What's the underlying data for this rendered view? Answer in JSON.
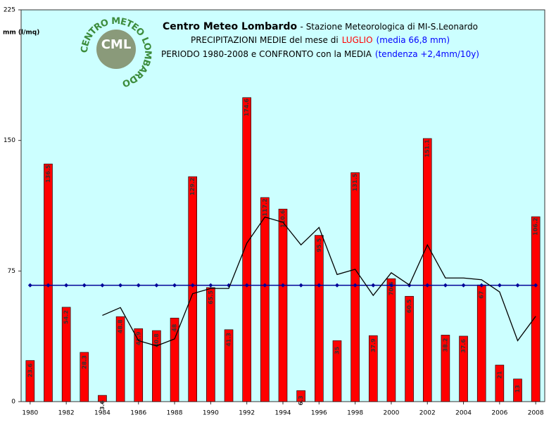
{
  "chart_data": {
    "type": "bar",
    "title": "Centro Meteo Lombardo",
    "subtitle": "- Stazione Meteorologica di MI-S.Leonardo",
    "heading_lines": [
      [
        {
          "text": "PRECIPITAZIONI MEDIE del mese di",
          "color": "#000000"
        },
        {
          "text": "LUGLIO",
          "color": "#ff0000"
        },
        {
          "text": "(media 66,8 mm)",
          "color": "#0000ff"
        }
      ],
      [
        {
          "text": "PERIODO 1980-2008 e CONFRONTO con la MEDIA",
          "color": "#000000"
        },
        {
          "text": "(tendenza +2,4mm/10y)",
          "color": "#0000ff"
        }
      ]
    ],
    "y_label": "mm (l/mq)",
    "logo_text": "CML",
    "logo_ring": "CENTRO METEO LOMBARDO",
    "x": [
      1980,
      1981,
      1982,
      1983,
      1984,
      1985,
      1986,
      1987,
      1988,
      1989,
      1990,
      1991,
      1992,
      1993,
      1994,
      1995,
      1996,
      1997,
      1998,
      1999,
      2000,
      2001,
      2002,
      2003,
      2004,
      2005,
      2006,
      2007,
      2008
    ],
    "series": [
      {
        "type": "bar",
        "color": "#ff0000",
        "values": [
          23.6,
          136.5,
          54.2,
          28.3,
          3.6,
          48.8,
          41.9,
          40.8,
          48.0,
          129.2,
          65.5,
          41.3,
          174.6,
          117.2,
          110.6,
          6.3,
          95.5,
          35.0,
          131.5,
          37.9,
          70.6,
          60.5,
          151.1,
          38.2,
          37.6,
          67.0,
          21.0,
          13.0,
          106.2
        ]
      },
      {
        "type": "line",
        "color": "#000099",
        "marker": true,
        "values": [
          66.8,
          66.8,
          66.8,
          66.8,
          66.8,
          66.8,
          66.8,
          66.8,
          66.8,
          66.8,
          66.8,
          66.8,
          66.8,
          66.8,
          66.8,
          66.8,
          66.8,
          66.8,
          66.8,
          66.8,
          66.8,
          66.8,
          66.8,
          66.8,
          66.8,
          66.8,
          66.8,
          66.8,
          66.8
        ]
      },
      {
        "type": "line",
        "color": "#000000",
        "marker": false,
        "values": [
          null,
          null,
          null,
          null,
          49.5,
          54,
          35,
          32,
          36,
          62,
          65,
          65,
          91,
          106,
          103,
          90,
          100,
          73,
          76,
          61,
          74,
          67,
          90,
          71,
          71,
          70,
          63,
          35,
          49
        ]
      }
    ],
    "xlim": [
      1979.5,
      2008.5
    ],
    "xticks": [
      1980,
      1982,
      1984,
      1986,
      1988,
      1990,
      1992,
      1994,
      1996,
      1998,
      2000,
      2002,
      2004,
      2006,
      2008
    ],
    "ylim": [
      0,
      225
    ],
    "yticks": [
      0,
      75,
      150,
      225
    ],
    "background": "#ccffff"
  }
}
